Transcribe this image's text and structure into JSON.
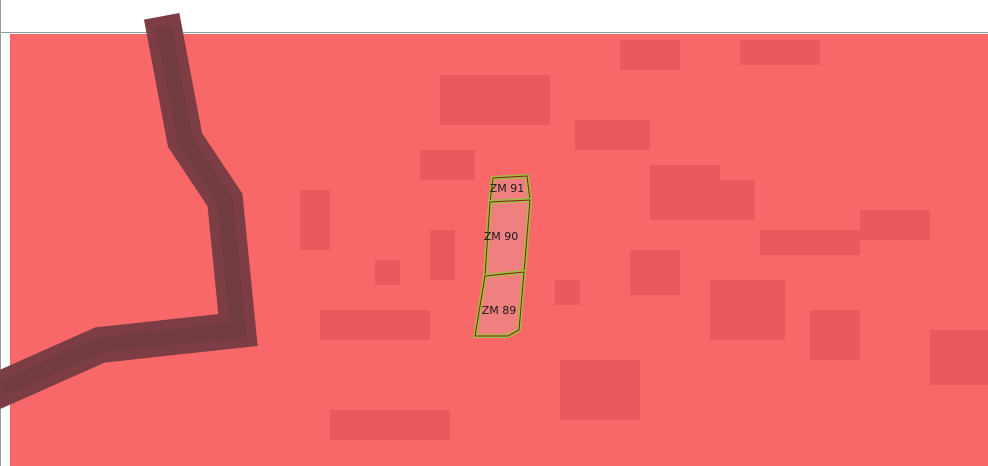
{
  "map": {
    "parcels": [
      {
        "label": "ZM 91"
      },
      {
        "label": "ZM 90"
      },
      {
        "label": "ZM 89"
      }
    ]
  }
}
